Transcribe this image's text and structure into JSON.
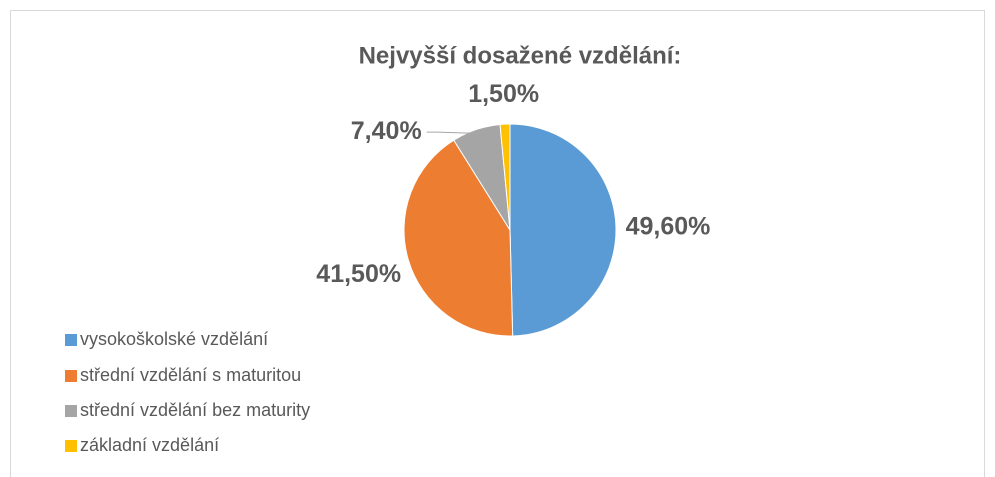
{
  "chart_data": {
    "type": "pie",
    "title": "Nejvyšší dosažené vzdělání:",
    "categories": [
      "vysokoškolské vzdělání",
      "střední vzdělání s maturitou",
      "střední vzdělání bez maturity",
      "základní vzdělání"
    ],
    "values": [
      49.6,
      41.5,
      7.4,
      1.5
    ],
    "value_labels": [
      "49,60%",
      "41,50%",
      "7,40%",
      "1,50%"
    ],
    "colors": [
      "#5b9bd5",
      "#ed7d31",
      "#a5a5a5",
      "#ffc000"
    ],
    "legend": "bottom-left"
  }
}
